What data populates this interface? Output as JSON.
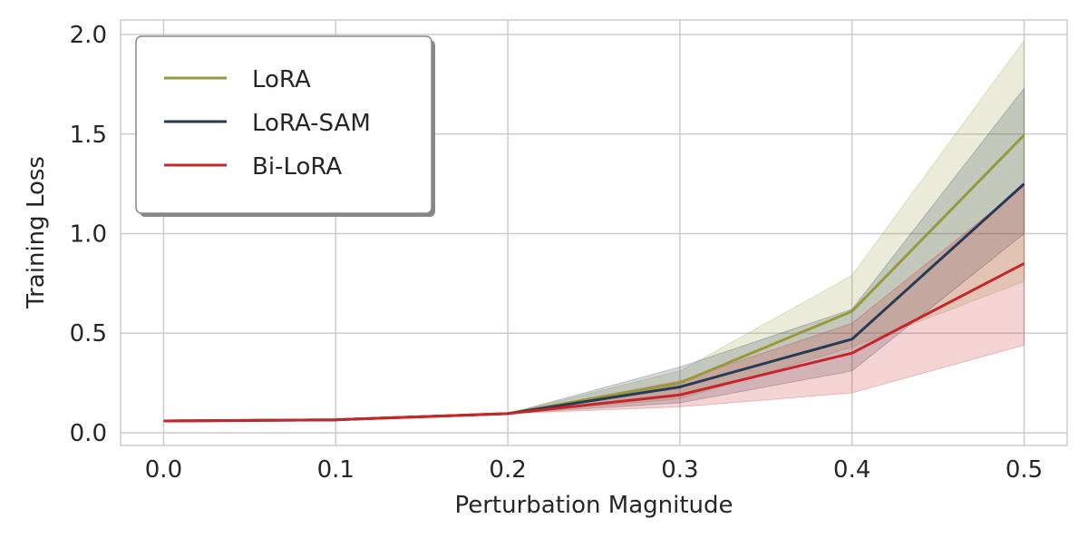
{
  "chart_data": {
    "type": "line",
    "title": "",
    "xlabel": "Perturbation Magnitude",
    "ylabel": "Training Loss",
    "x": [
      0.0,
      0.1,
      0.2,
      0.3,
      0.4,
      0.5
    ],
    "xticks": [
      "0.0",
      "0.1",
      "0.2",
      "0.3",
      "0.4",
      "0.5"
    ],
    "yticks": [
      "0.0",
      "0.5",
      "1.0",
      "1.5",
      "2.0"
    ],
    "xlim": [
      -0.025,
      0.525
    ],
    "ylim": [
      -0.064,
      2.073
    ],
    "grid": true,
    "legend_position": "top-left",
    "series": [
      {
        "name": "LoRA",
        "color": "#969a3a",
        "values": [
          0.059,
          0.065,
          0.096,
          0.25,
          0.61,
          1.495
        ],
        "lower": [
          0.059,
          0.065,
          0.096,
          0.17,
          0.43,
          0.76
        ],
        "upper": [
          0.059,
          0.065,
          0.096,
          0.31,
          0.79,
          1.97
        ]
      },
      {
        "name": "LoRA-SAM",
        "color": "#283a55",
        "values": [
          0.059,
          0.065,
          0.096,
          0.23,
          0.47,
          1.25
        ],
        "lower": [
          0.059,
          0.065,
          0.096,
          0.15,
          0.31,
          1.0
        ],
        "upper": [
          0.059,
          0.065,
          0.096,
          0.33,
          0.62,
          1.73
        ]
      },
      {
        "name": "Bi-LoRA",
        "color": "#c8252a",
        "values": [
          0.059,
          0.065,
          0.096,
          0.19,
          0.4,
          0.85
        ],
        "lower": [
          0.059,
          0.065,
          0.096,
          0.13,
          0.2,
          0.44
        ],
        "upper": [
          0.059,
          0.065,
          0.096,
          0.26,
          0.55,
          1.24
        ]
      }
    ]
  }
}
